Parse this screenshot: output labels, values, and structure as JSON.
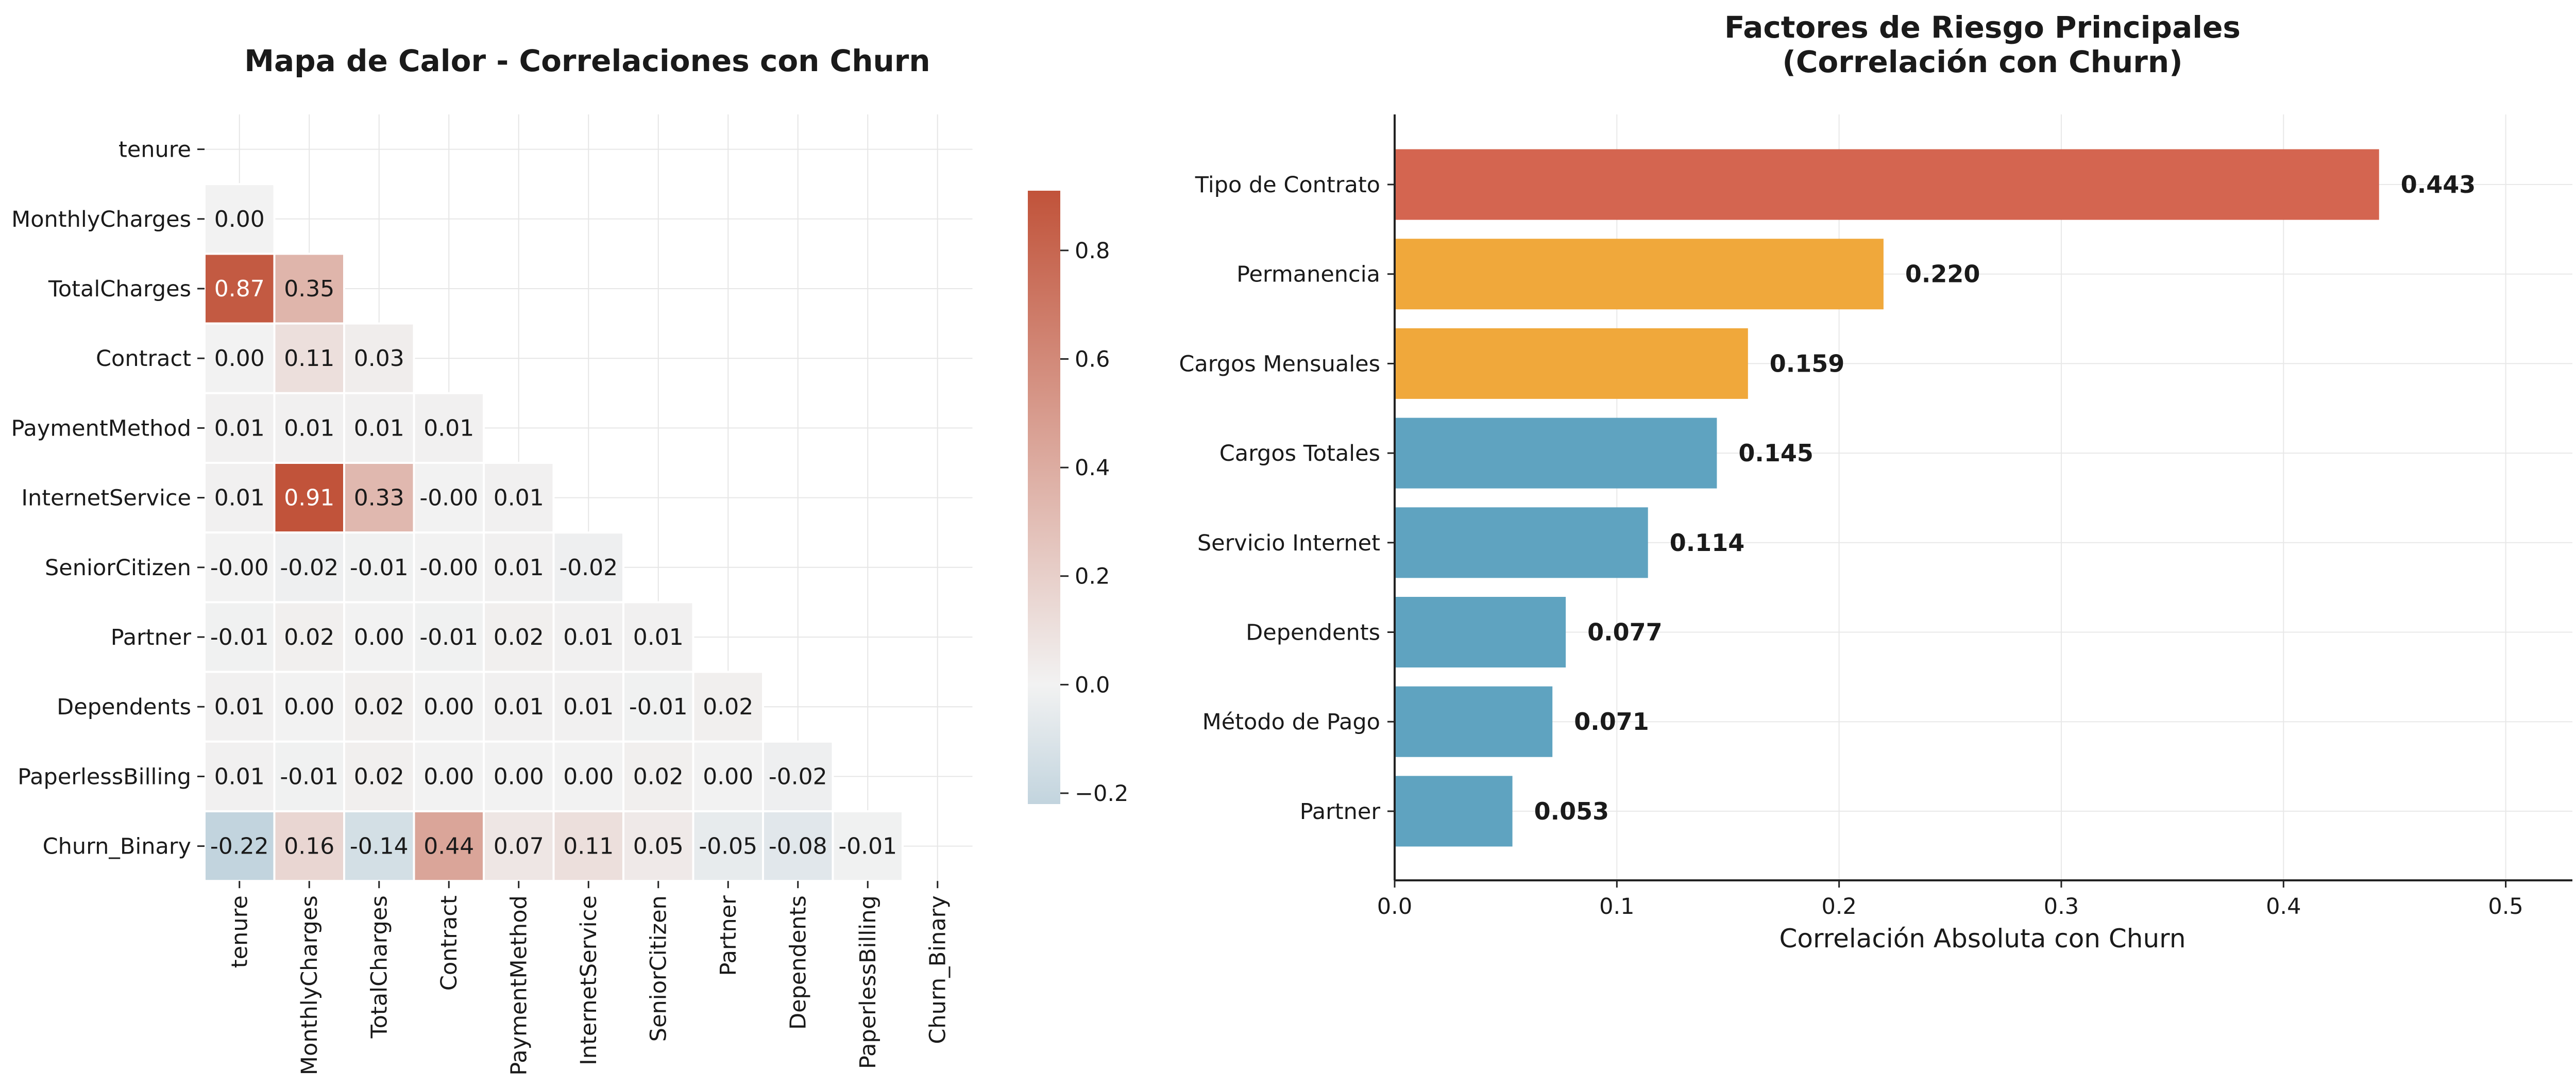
{
  "chart_data": [
    {
      "type": "heatmap",
      "title": "Mapa de Calor - Correlaciones con Churn",
      "variables": [
        "tenure",
        "MonthlyCharges",
        "TotalCharges",
        "Contract",
        "PaymentMethod",
        "InternetService",
        "SeniorCitizen",
        "Partner",
        "Dependents",
        "PaperlessBilling",
        "Churn_Binary"
      ],
      "lower_triangle_values": [
        [],
        [
          0.0
        ],
        [
          0.87,
          0.35
        ],
        [
          0.0,
          0.11,
          0.03
        ],
        [
          0.01,
          0.01,
          0.01,
          0.01
        ],
        [
          0.01,
          0.91,
          0.33,
          -0.0,
          0.01
        ],
        [
          -0.0,
          -0.02,
          -0.01,
          -0.0,
          0.01,
          -0.02
        ],
        [
          -0.01,
          0.02,
          0.0,
          -0.01,
          0.02,
          0.01,
          0.01
        ],
        [
          0.01,
          0.0,
          0.02,
          0.0,
          0.01,
          0.01,
          -0.01,
          0.02
        ],
        [
          0.01,
          -0.01,
          0.02,
          0.0,
          0.0,
          0.0,
          0.02,
          0.0,
          -0.02
        ],
        [
          -0.22,
          0.16,
          -0.14,
          0.44,
          0.07,
          0.11,
          0.05,
          -0.05,
          -0.08,
          -0.01
        ]
      ],
      "display_labels": [
        [],
        [
          "0.00"
        ],
        [
          "0.87",
          "0.35"
        ],
        [
          "0.00",
          "0.11",
          "0.03"
        ],
        [
          "0.01",
          "0.01",
          "0.01",
          "0.01"
        ],
        [
          "0.01",
          "0.91",
          "0.33",
          "-0.00",
          "0.01"
        ],
        [
          "-0.00",
          "-0.02",
          "-0.01",
          "-0.00",
          "0.01",
          "-0.02"
        ],
        [
          "-0.01",
          "0.02",
          "0.00",
          "-0.01",
          "0.02",
          "0.01",
          "0.01"
        ],
        [
          "0.01",
          "0.00",
          "0.02",
          "0.00",
          "0.01",
          "0.01",
          "-0.01",
          "0.02"
        ],
        [
          "0.01",
          "-0.01",
          "0.02",
          "0.00",
          "0.00",
          "0.00",
          "0.02",
          "0.00",
          "-0.02"
        ],
        [
          "-0.22",
          "0.16",
          "-0.14",
          "0.44",
          "0.07",
          "0.11",
          "0.05",
          "-0.05",
          "-0.08",
          "-0.01"
        ]
      ],
      "colorbar": {
        "vmin": -0.22,
        "vmax": 0.91,
        "ticks": [
          -0.2,
          0.0,
          0.2,
          0.4,
          0.6,
          0.8
        ],
        "tick_labels": [
          "−0.2",
          "0.0",
          "0.2",
          "0.4",
          "0.6",
          "0.8"
        ],
        "low_color": "#c2d4de",
        "mid_color": "#f2f2f2",
        "high_color": "#c1533a"
      },
      "grid": true
    },
    {
      "type": "bar",
      "orientation": "horizontal",
      "title_lines": [
        "Factores de Riesgo Principales",
        "(Correlación con Churn)"
      ],
      "categories": [
        "Tipo de Contrato",
        "Permanencia",
        "Cargos Mensuales",
        "Cargos Totales",
        "Servicio Internet",
        "Dependents",
        "Método de Pago",
        "Partner"
      ],
      "values": [
        0.443,
        0.22,
        0.159,
        0.145,
        0.114,
        0.077,
        0.071,
        0.053
      ],
      "value_labels": [
        "0.443",
        "0.220",
        "0.159",
        "0.145",
        "0.114",
        "0.077",
        "0.071",
        "0.053"
      ],
      "colors": [
        "#d3604a",
        "#f0a535",
        "#f0a535",
        "#5aa0be",
        "#5aa0be",
        "#5aa0be",
        "#5aa0be",
        "#5aa0be"
      ],
      "xlabel": "Correlación Absoluta con Churn",
      "xlim": [
        0,
        0.53
      ],
      "xticks": [
        0.0,
        0.1,
        0.2,
        0.3,
        0.4,
        0.5
      ],
      "xtick_labels": [
        "0.0",
        "0.1",
        "0.2",
        "0.3",
        "0.4",
        "0.5"
      ],
      "grid": true
    }
  ]
}
